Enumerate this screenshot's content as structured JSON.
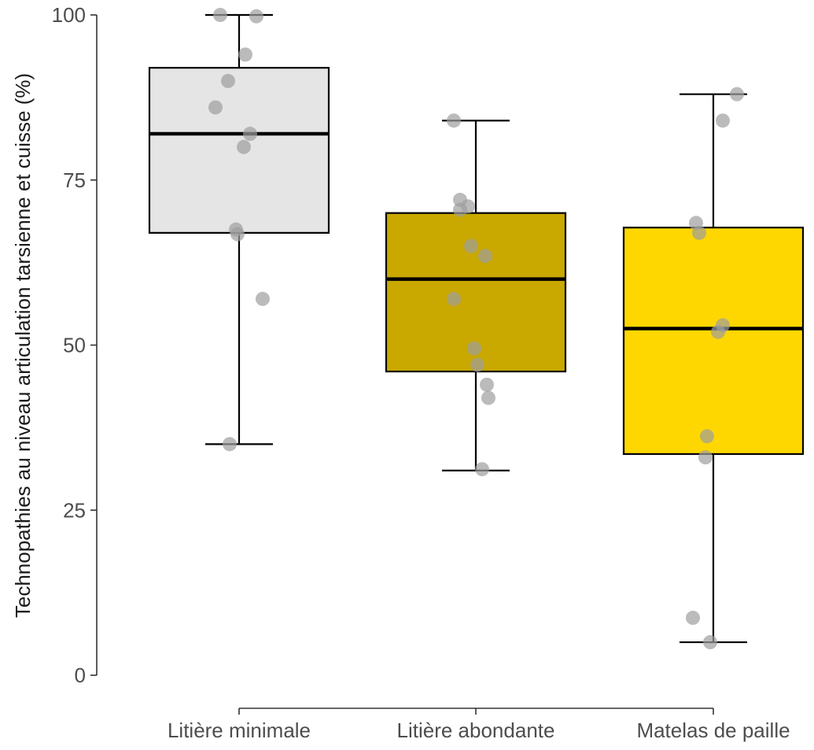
{
  "chart_data": {
    "type": "boxplot",
    "title": "",
    "xlabel": "",
    "ylabel": "Technopathies au niveau articulation tarsienne et cuisse (%)",
    "ylim": [
      0,
      100
    ],
    "yticks": [
      0,
      25,
      50,
      75,
      100
    ],
    "grid": false,
    "legend": "none",
    "categories": [
      "Litière minimale",
      "Litière abondante",
      "Matelas de paille"
    ],
    "boxes": [
      {
        "category": "Litière minimale",
        "fill": "#e5e5e5",
        "whisker_low": 35,
        "q1": 67,
        "median": 82,
        "q3": 92,
        "whisker_high": 100,
        "points": [
          100,
          99.8,
          94,
          90,
          86,
          82,
          80,
          67.5,
          66.8,
          57,
          35
        ]
      },
      {
        "category": "Litière abondante",
        "fill": "#c9a800",
        "whisker_low": 31,
        "q1": 46,
        "median": 60,
        "q3": 70,
        "whisker_high": 84,
        "points": [
          84,
          72,
          71,
          70.5,
          65,
          63.5,
          57,
          49.5,
          47,
          44,
          42,
          31.2
        ]
      },
      {
        "category": "Matelas de paille",
        "fill": "#ffd700",
        "whisker_low": 5,
        "q1": 33.5,
        "median": 52.5,
        "q3": 67.8,
        "whisker_high": 88,
        "points": [
          88,
          84,
          68.5,
          67,
          53,
          52,
          36.2,
          33,
          8.7,
          5
        ]
      }
    ],
    "point_color": "#9e9e9e",
    "line_color": "#000000"
  }
}
